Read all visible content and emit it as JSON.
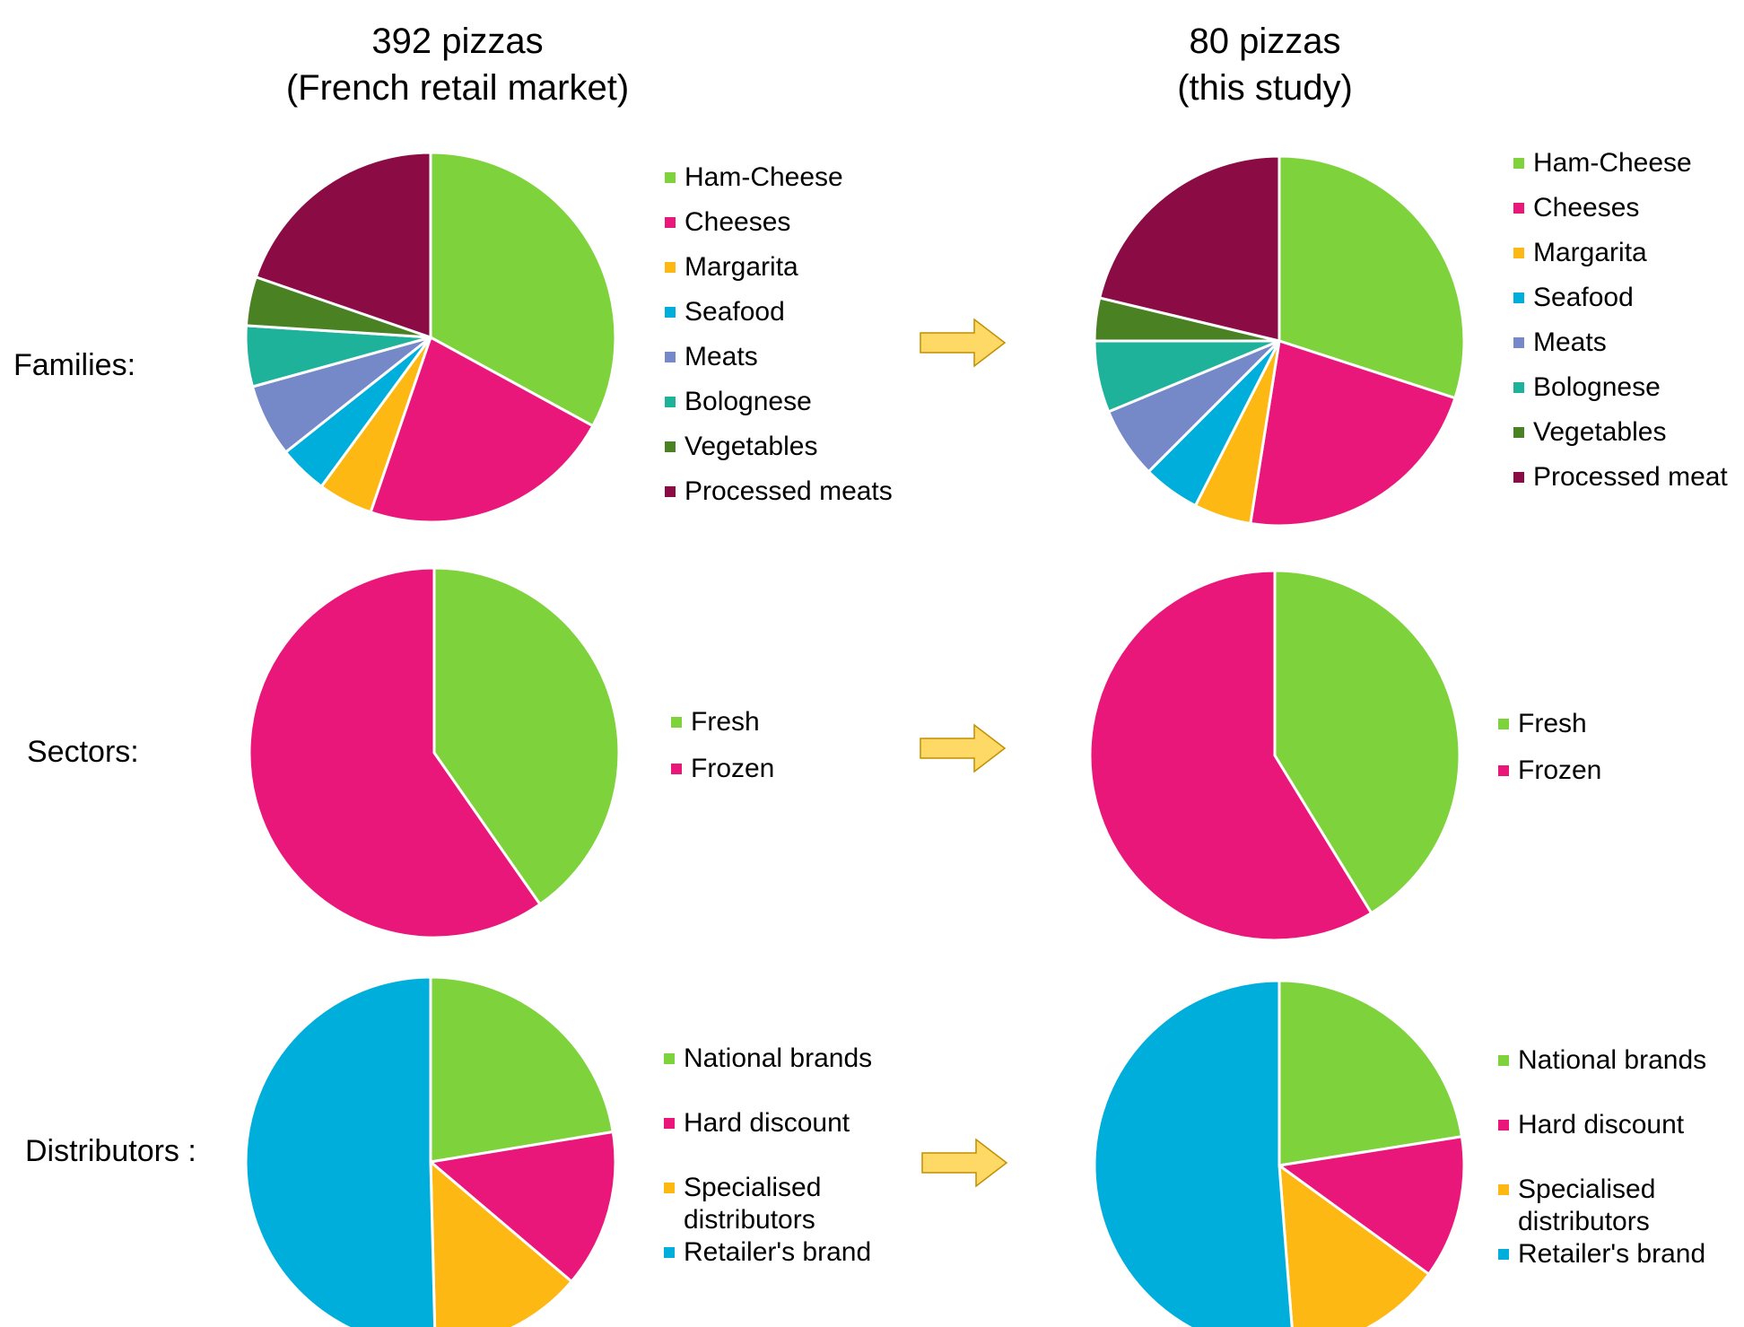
{
  "chart_data": [
    {
      "type": "pie",
      "column_title": [
        "392 pizzas",
        "(French retail market)"
      ],
      "row_label": "Families:",
      "categories": [
        "Ham-Cheese",
        "Cheeses",
        "Margarita",
        "Seafood",
        "Meats",
        "Bolognese",
        "Vegetables",
        "Processed meats"
      ],
      "values": [
        31.6,
        21.4,
        4.6,
        4.1,
        6.1,
        5.1,
        4.1,
        18.9
      ],
      "colors": [
        "#7ED23C",
        "#EA177B",
        "#FDB813",
        "#00AEDB",
        "#7588C8",
        "#1FB29B",
        "#4A8223",
        "#8B0C45"
      ]
    },
    {
      "type": "pie",
      "column_title": [
        "80 pizzas",
        "(this study)"
      ],
      "row_label": "Families:",
      "categories": [
        "Ham-Cheese",
        "Cheeses",
        "Margarita",
        "Seafood",
        "Meats",
        "Bolognese",
        "Vegetables",
        "Processed meat"
      ],
      "values": [
        30,
        22.5,
        5,
        5,
        6.25,
        6.25,
        3.75,
        21.25
      ],
      "colors": [
        "#7ED23C",
        "#EA177B",
        "#FDB813",
        "#00AEDB",
        "#7588C8",
        "#1FB29B",
        "#4A8223",
        "#8B0C45"
      ]
    },
    {
      "type": "pie",
      "row_label": "Sectors:",
      "categories": [
        "Fresh",
        "Frozen"
      ],
      "values": [
        40.3,
        59.7
      ],
      "colors": [
        "#7ED23C",
        "#EA177B"
      ]
    },
    {
      "type": "pie",
      "row_label": "Sectors:",
      "categories": [
        "Fresh",
        "Frozen"
      ],
      "values": [
        41.25,
        58.75
      ],
      "colors": [
        "#7ED23C",
        "#EA177B"
      ]
    },
    {
      "type": "pie",
      "row_label": "Distributors :",
      "categories": [
        "National brands",
        "Hard discount",
        "Specialised\ndistributors",
        "Retailer's brand"
      ],
      "values": [
        22.4,
        13.8,
        13.4,
        50.4
      ],
      "colors": [
        "#7ED23C",
        "#EA177B",
        "#FDB813",
        "#00AEDB"
      ]
    },
    {
      "type": "pie",
      "row_label": "Distributors :",
      "categories": [
        "National brands",
        "Hard discount",
        "Specialised\ndistributors",
        "Retailer's brand"
      ],
      "values": [
        22.5,
        12.5,
        13.75,
        51.25
      ],
      "colors": [
        "#7ED23C",
        "#EA177B",
        "#FDB813",
        "#00AEDB"
      ]
    }
  ],
  "arrow_color": "#FFD966",
  "arrow_stroke": "#BF9000"
}
